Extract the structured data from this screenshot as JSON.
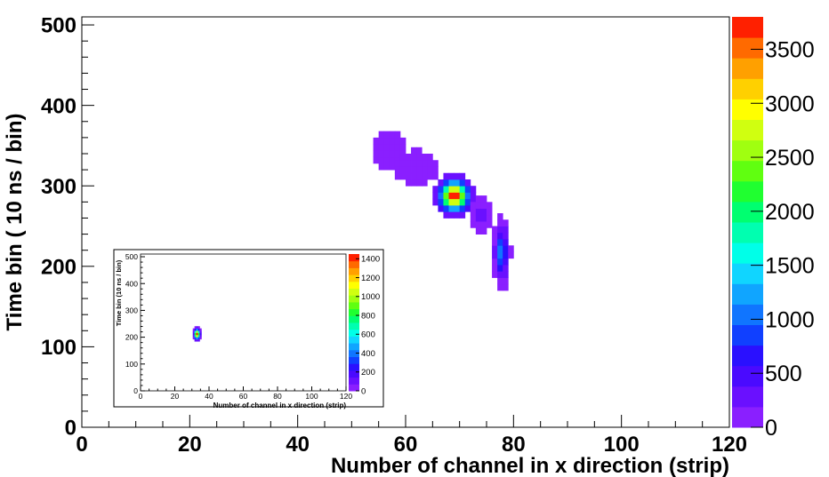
{
  "chart_data": [
    {
      "type": "heatmap",
      "title": "",
      "xlabel": "Number of channel in x direction (strip)",
      "ylabel": "Time bin ( 10 ns / bin)",
      "xlim": [
        0,
        120
      ],
      "ylim": [
        0,
        510
      ],
      "x_ticks": [
        "0",
        "20",
        "40",
        "60",
        "80",
        "100",
        "120"
      ],
      "y_ticks": [
        "0",
        "100",
        "200",
        "300",
        "400",
        "500"
      ],
      "colorbar": {
        "range": [
          0,
          3800
        ],
        "ticks": [
          "0",
          "500",
          "1000",
          "1500",
          "2000",
          "2500",
          "3000",
          "3500"
        ]
      },
      "clusters": [
        {
          "x": [
            54,
            60
          ],
          "y": [
            320,
            370
          ],
          "peak": 150
        },
        {
          "x": [
            58,
            66
          ],
          "y": [
            300,
            345
          ],
          "peak": 200
        },
        {
          "x": [
            65,
            73
          ],
          "y": [
            260,
            315
          ],
          "peak": 3800
        },
        {
          "x": [
            72,
            76
          ],
          "y": [
            240,
            290
          ],
          "peak": 300
        },
        {
          "x": [
            76,
            79.5
          ],
          "y": [
            170,
            265
          ],
          "peak": 1100
        }
      ],
      "grid": false
    },
    {
      "type": "heatmap",
      "title": "",
      "xlabel": "Number of channel in x direction (strip)",
      "ylabel": "Time bin (10 ns / bin)",
      "xlim": [
        0,
        120
      ],
      "ylim": [
        0,
        510
      ],
      "x_ticks": [
        "0",
        "20",
        "40",
        "60",
        "80",
        "100",
        "120"
      ],
      "y_ticks": [
        "0",
        "100",
        "200",
        "300",
        "400",
        "500"
      ],
      "colorbar": {
        "range": [
          0,
          1450
        ],
        "ticks": [
          "0",
          "200",
          "400",
          "600",
          "800",
          "1000",
          "1200",
          "1400"
        ]
      },
      "clusters": [
        {
          "x": [
            30.5,
            35.5
          ],
          "y": [
            185,
            240
          ],
          "peak": 1400
        }
      ],
      "grid": false
    }
  ]
}
